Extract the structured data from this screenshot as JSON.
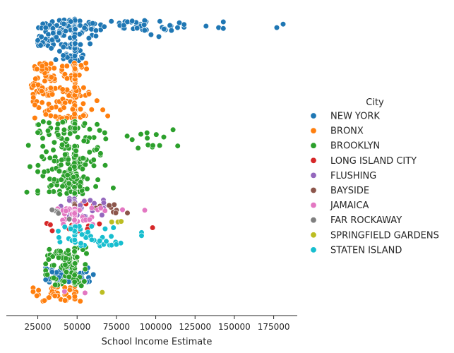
{
  "chart_data": {
    "type": "scatter",
    "title": "",
    "xlabel": "School Income Estimate",
    "ylabel": "",
    "xlim": [
      5000,
      190000
    ],
    "x_ticks": [
      25000,
      50000,
      75000,
      100000,
      125000,
      150000,
      175000
    ],
    "x_tick_labels": [
      "25000",
      "50000",
      "75000",
      "100000",
      "125000",
      "150000",
      "175000"
    ],
    "y_axis": "school index (unlabeled, no ticks)",
    "ylim": [
      0,
      100
    ],
    "grid": false,
    "legend": {
      "title": "City",
      "placement": "right"
    },
    "series": [
      {
        "name": "NEW YORK",
        "color": "#1f77b4",
        "clusters": [
          {
            "yrange": [
              0,
              3.5
            ],
            "n": 55,
            "xmin": 25000,
            "xmax": 65000,
            "mean": 46000,
            "sd": 10000,
            "spike": 0.3
          },
          {
            "yrange": [
              0.5,
              4
            ],
            "n": 38,
            "xmin": 65000,
            "xmax": 118000,
            "mean": 92000,
            "sd": 14000,
            "spike": 0
          },
          {
            "yrange": [
              3,
              7
            ],
            "n": 45,
            "xmin": 30000,
            "xmax": 62000,
            "mean": 44000,
            "sd": 8000,
            "spike": 0.35
          },
          {
            "yrange": [
              6,
              9.5
            ],
            "n": 40,
            "xmin": 25000,
            "xmax": 40000,
            "mean": 31000,
            "sd": 4500,
            "spike": 0.1
          },
          {
            "yrange": [
              8.5,
              15
            ],
            "n": 60,
            "xmin": 33000,
            "xmax": 68000,
            "mean": 46000,
            "sd": 6000,
            "spike": 0.35
          },
          {
            "yrange": [
              87.5,
              93
            ],
            "n": 70,
            "xmin": 30000,
            "xmax": 88000,
            "mean": 44000,
            "sd": 8000,
            "spike": 0.3
          }
        ],
        "points": [
          [
            132000,
            2.5
          ],
          [
            140000,
            3.0
          ],
          [
            143000,
            1.0
          ],
          [
            143000,
            3.3
          ],
          [
            177000,
            3.0
          ],
          [
            181000,
            1.8
          ],
          [
            115000,
            1.3
          ],
          [
            110000,
            4.0
          ],
          [
            97000,
            5.5
          ],
          [
            102000,
            6.2
          ]
        ]
      },
      {
        "name": "BRONX",
        "color": "#ff7f0e",
        "clusters": [
          {
            "yrange": [
              15.5,
              27
            ],
            "n": 70,
            "xmin": 18000,
            "xmax": 38000,
            "mean": 28000,
            "sd": 4000,
            "spike": 0.1
          },
          {
            "yrange": [
              15.5,
              22
            ],
            "n": 35,
            "xmin": 38000,
            "xmax": 68000,
            "mean": 48000,
            "sd": 5000,
            "spike": 0.45
          },
          {
            "yrange": [
              24,
              35
            ],
            "n": 110,
            "xmin": 22000,
            "xmax": 80000,
            "mean": 43000,
            "sd": 11000,
            "spike": 0.25
          },
          {
            "yrange": [
              94,
              99.5
            ],
            "n": 40,
            "xmin": 22000,
            "xmax": 52000,
            "mean": 35000,
            "sd": 9000,
            "spike": 0.2
          }
        ],
        "points": []
      },
      {
        "name": "BROOKLYN",
        "color": "#2ca02c",
        "clusters": [
          {
            "yrange": [
              36,
              62
            ],
            "n": 230,
            "xmin": 25000,
            "xmax": 72000,
            "mean": 44000,
            "sd": 10000,
            "spike": 0.28
          },
          {
            "yrange": [
              40,
              46
            ],
            "n": 12,
            "xmin": 72000,
            "xmax": 114000,
            "mean": 98000,
            "sd": 9000,
            "spike": 0
          },
          {
            "yrange": [
              80,
              94
            ],
            "n": 110,
            "xmin": 30000,
            "xmax": 68000,
            "mean": 43000,
            "sd": 7000,
            "spike": 0.3
          }
        ],
        "points": [
          [
            19000,
            44.5
          ],
          [
            20000,
            52.0
          ],
          [
            18000,
            61.0
          ],
          [
            111000,
            39.0
          ],
          [
            85000,
            42.5
          ],
          [
            73000,
            59.5
          ]
        ]
      },
      {
        "name": "LONG ISLAND CITY",
        "color": "#d62728",
        "clusters": [
          {
            "yrange": [
              72,
              75
            ],
            "n": 16,
            "xmin": 25000,
            "xmax": 66000,
            "mean": 47000,
            "sd": 9000,
            "spike": 0.3
          },
          {
            "yrange": [
              63.5,
              65.5
            ],
            "n": 4,
            "xmin": 52000,
            "xmax": 62000,
            "mean": 56000,
            "sd": 4000,
            "spike": 0
          }
        ],
        "points": [
          [
            98000,
            73.5
          ],
          [
            33000,
            72.5
          ]
        ]
      },
      {
        "name": "FLUSHING",
        "color": "#9467bd",
        "clusters": [
          {
            "yrange": [
              63,
              70
            ],
            "n": 38,
            "xmin": 35000,
            "xmax": 84000,
            "mean": 55000,
            "sd": 11000,
            "spike": 0.25
          }
        ],
        "points": []
      },
      {
        "name": "BAYSIDE",
        "color": "#8c564b",
        "clusters": [
          {
            "yrange": [
              65,
              68.5
            ],
            "n": 14,
            "xmin": 62000,
            "xmax": 84000,
            "mean": 72000,
            "sd": 6000,
            "spike": 0.1
          }
        ],
        "points": []
      },
      {
        "name": "JAMAICA",
        "color": "#e377c2",
        "clusters": [
          {
            "yrange": [
              66.5,
              73
            ],
            "n": 50,
            "xmin": 35000,
            "xmax": 93000,
            "mean": 52000,
            "sd": 13000,
            "spike": 0.3
          }
        ],
        "points": [
          [
            55000,
            96.5
          ],
          [
            42000,
            96.0
          ]
        ]
      },
      {
        "name": "FAR ROCKAWAY",
        "color": "#7f7f7f",
        "clusters": [
          {
            "yrange": [
              67,
              68.5
            ],
            "n": 4,
            "xmin": 30000,
            "xmax": 45000,
            "mean": 37000,
            "sd": 5000,
            "spike": 0
          }
        ],
        "points": [
          [
            45000,
            70.5
          ]
        ]
      },
      {
        "name": "SPRINGFIELD GARDENS",
        "color": "#bcbd22",
        "clusters": [],
        "points": [
          [
            72000,
            71.5
          ],
          [
            76000,
            71.5
          ],
          [
            78000,
            71.3
          ],
          [
            66000,
            96.3
          ]
        ]
      },
      {
        "name": "STATEN ISLAND",
        "color": "#17becf",
        "clusters": [
          {
            "yrange": [
              73,
              80
            ],
            "n": 55,
            "xmin": 38000,
            "xmax": 91000,
            "mean": 62000,
            "sd": 14000,
            "spike": 0.3
          }
        ],
        "points": []
      }
    ]
  }
}
